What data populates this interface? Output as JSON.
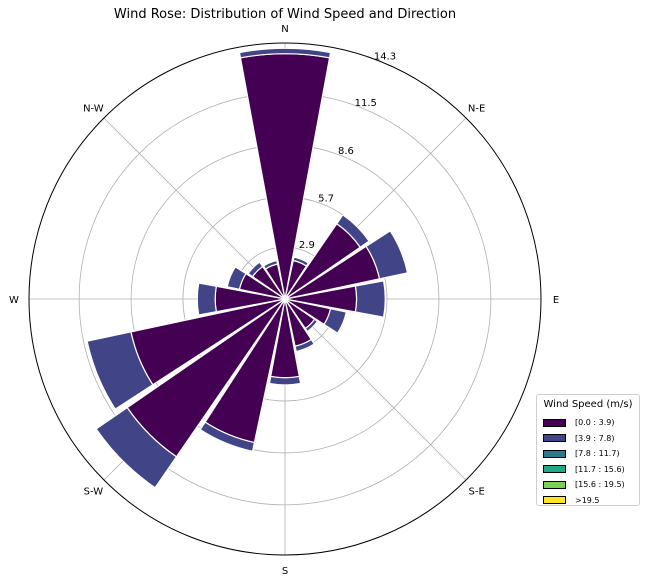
{
  "chart_data": {
    "type": "wind-rose",
    "title": "Wind Rose: Distribution of Wind Speed and Direction",
    "compass_labels": [
      "N",
      "N-E",
      "E",
      "S-E",
      "S",
      "S-W",
      "W",
      "N-W"
    ],
    "radial_ticks": [
      "2.9",
      "5.7",
      "8.6",
      "11.5",
      "14.3"
    ],
    "radial_tick_values": [
      2.9,
      5.7,
      8.6,
      11.5,
      14.3
    ],
    "rmax": 14.3,
    "legend_title": "Wind Speed (m/s)",
    "legend_placement": "lower-right",
    "grid": true,
    "sectors": [
      {
        "direction_deg": 0,
        "values": [
          13.7,
          0.3
        ]
      },
      {
        "direction_deg": 22.5,
        "values": [
          2.2,
          0.2
        ]
      },
      {
        "direction_deg": 45,
        "values": [
          5.1,
          0.6
        ]
      },
      {
        "direction_deg": 67.5,
        "values": [
          5.4,
          1.6
        ]
      },
      {
        "direction_deg": 90,
        "values": [
          4.0,
          1.6
        ]
      },
      {
        "direction_deg": 112.5,
        "values": [
          2.6,
          0.9
        ]
      },
      {
        "direction_deg": 135,
        "values": [
          2.0,
          0.2
        ]
      },
      {
        "direction_deg": 157.5,
        "values": [
          2.7,
          0.3
        ]
      },
      {
        "direction_deg": 180,
        "values": [
          4.4,
          0.4
        ]
      },
      {
        "direction_deg": 202.5,
        "values": [
          8.2,
          0.5
        ]
      },
      {
        "direction_deg": 225,
        "values": [
          10.7,
          2.1
        ]
      },
      {
        "direction_deg": 247.5,
        "values": [
          8.8,
          2.5
        ]
      },
      {
        "direction_deg": 270,
        "values": [
          3.9,
          1.0
        ]
      },
      {
        "direction_deg": 292.5,
        "values": [
          2.6,
          0.7
        ]
      },
      {
        "direction_deg": 315,
        "values": [
          2.2,
          0.3
        ]
      },
      {
        "direction_deg": 337.5,
        "values": [
          2.0,
          0.2
        ]
      }
    ],
    "series": [
      {
        "name": "[0.0 : 3.9)",
        "color": "#440154"
      },
      {
        "name": "[3.9 : 7.8)",
        "color": "#414487"
      },
      {
        "name": "[7.8 : 11.7)",
        "color": "#2a788e"
      },
      {
        "name": "[11.7 : 15.6)",
        "color": "#22a884"
      },
      {
        "name": "[15.6 : 19.5)",
        "color": "#7ad151"
      },
      {
        "name": ">19.5",
        "color": "#fde725"
      }
    ]
  }
}
